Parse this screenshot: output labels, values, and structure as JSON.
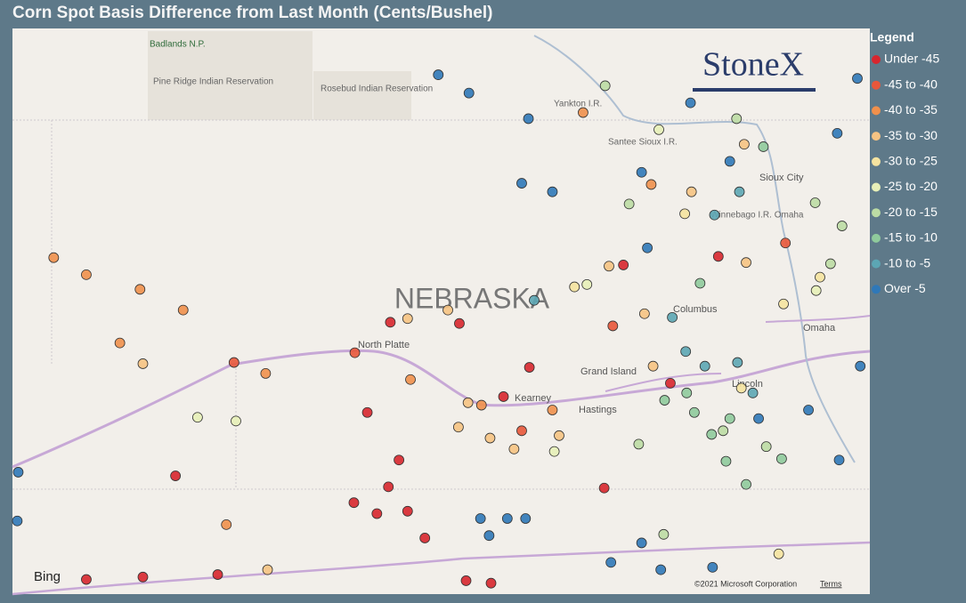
{
  "chart_data": {
    "type": "scatter",
    "title": "Corn Spot Basis Difference from Last Month (Cents/Bushel)",
    "legend_title": "Legend",
    "legend": "right",
    "xlim": [
      -104.35,
      -95.41
    ],
    "ylim": [
      39.08,
      43.72
    ],
    "series": [
      {
        "name": "Under -45",
        "color": "#d7262e",
        "x": [
          -102.65,
          -100.55,
          -100.23,
          -100.05,
          -100.32,
          -100.43,
          -100.79,
          -100.65,
          -100.41,
          -99.69,
          -99.23,
          -98.96,
          -98.18,
          -97.49,
          -96.99,
          -97.98,
          -99.62,
          -99.36,
          -103.58,
          -102.99,
          -102.21
        ],
        "values": [
          40.05,
          39.74,
          39.76,
          39.54,
          40.18,
          39.96,
          39.83,
          40.57,
          41.31,
          41.3,
          40.7,
          40.94,
          39.95,
          40.81,
          41.85,
          41.78,
          39.19,
          39.17,
          39.2,
          39.22,
          39.24
        ]
      },
      {
        "name": "-45 to -40",
        "color": "#e8573a",
        "x": [
          -100.78,
          -102.04,
          -98.09,
          -96.29,
          -99.04
        ],
        "values": [
          41.06,
          40.98,
          41.28,
          41.96,
          40.42
        ]
      },
      {
        "name": "-40 to -35",
        "color": "#f0904c",
        "x": [
          -103.92,
          -103.58,
          -103.02,
          -102.57,
          -103.23,
          -102.12,
          -101.71,
          -100.2,
          -99.46,
          -98.72,
          -98.4,
          -97.69
        ],
        "values": [
          41.84,
          41.7,
          41.58,
          41.41,
          41.14,
          39.65,
          40.89,
          40.84,
          40.63,
          40.59,
          43.03,
          42.44
        ]
      },
      {
        "name": "-35 to -30",
        "color": "#f6c383",
        "x": [
          -100.23,
          -99.81,
          -99.7,
          -99.37,
          -99.6,
          -99.12,
          -98.65,
          -98.13,
          -97.76,
          -97.27,
          -96.72,
          -96.7,
          -101.69,
          -102.99,
          -97.67
        ],
        "values": [
          41.34,
          41.41,
          40.45,
          40.36,
          40.65,
          40.27,
          40.38,
          41.77,
          41.38,
          42.38,
          42.77,
          41.8,
          39.28,
          40.97,
          40.95
        ]
      },
      {
        "name": "-30 to -25",
        "color": "#f5e3a0",
        "x": [
          -97.34,
          -96.36,
          -96.31,
          -96.75,
          -95.93,
          -98.49
        ],
        "values": [
          42.2,
          39.41,
          41.46,
          40.77,
          41.68,
          41.6
        ]
      },
      {
        "name": "-25 to -20",
        "color": "#e7efb8",
        "x": [
          -102.42,
          -102.02,
          -98.36,
          -98.7,
          -97.61,
          -95.97
        ],
        "values": [
          40.53,
          40.5,
          41.62,
          40.25,
          42.89,
          41.57
        ]
      },
      {
        "name": "-20 to -15",
        "color": "#bcdca4",
        "x": [
          -97.82,
          -96.94,
          -96.49,
          -95.98,
          -95.82,
          -95.7,
          -98.17,
          -96.8,
          -97.92,
          -97.56
        ],
        "values": [
          40.31,
          40.42,
          40.29,
          42.29,
          41.79,
          42.1,
          43.25,
          42.98,
          42.28,
          39.57
        ]
      },
      {
        "name": "-15 to -10",
        "color": "#8fca9c",
        "x": [
          -97.24,
          -97.06,
          -96.91,
          -96.7,
          -97.32,
          -97.18,
          -96.87,
          -96.33,
          -96.52,
          -97.55
        ],
        "values": [
          40.57,
          40.39,
          40.17,
          39.98,
          40.73,
          41.63,
          40.52,
          40.19,
          42.75,
          40.67
        ]
      },
      {
        "name": "-10 to -5",
        "color": "#5ca6b4",
        "x": [
          -98.91,
          -97.47,
          -97.03,
          -96.77,
          -96.63,
          -97.13,
          -96.79,
          -97.33
        ],
        "values": [
          41.49,
          41.35,
          42.19,
          42.38,
          40.73,
          40.95,
          40.98,
          41.07
        ]
      },
      {
        "name": "Over -5",
        "color": "#2f78b8",
        "x": [
          -99.91,
          -99.59,
          -98.97,
          -99.04,
          -98.72,
          -99.47,
          -99.19,
          -99.0,
          -99.38,
          -104.29,
          -104.3,
          -97.73,
          -97.79,
          -97.28,
          -96.87,
          -96.05,
          -95.75,
          -95.54,
          -95.51,
          -95.73,
          -98.11,
          -97.59,
          -97.05,
          -96.57,
          -97.79
        ],
        "values": [
          43.34,
          43.19,
          42.98,
          42.45,
          42.38,
          39.7,
          39.7,
          39.7,
          39.56,
          40.08,
          39.68,
          41.92,
          42.54,
          43.11,
          42.63,
          40.59,
          42.86,
          43.31,
          40.95,
          40.18,
          39.34,
          39.28,
          39.3,
          40.52,
          39.5
        ]
      }
    ]
  },
  "map_labels": [
    "NEBRASKA",
    "North Platte",
    "Kearney",
    "Grand Island",
    "Hastings",
    "Columbus",
    "Omaha",
    "Sioux City",
    "Yankton I.R.",
    "Santee Sioux I.R.",
    "Winnebago I.R. Omaha",
    "Pine Ridge Indian Reservation",
    "Rosebud Indian Reservation",
    "Badlands N.P.",
    "Lincoln"
  ],
  "brand": "StoneX",
  "attribution": {
    "provider": "Bing",
    "copyright": "©2021 Microsoft Corporation",
    "terms": "Terms"
  }
}
